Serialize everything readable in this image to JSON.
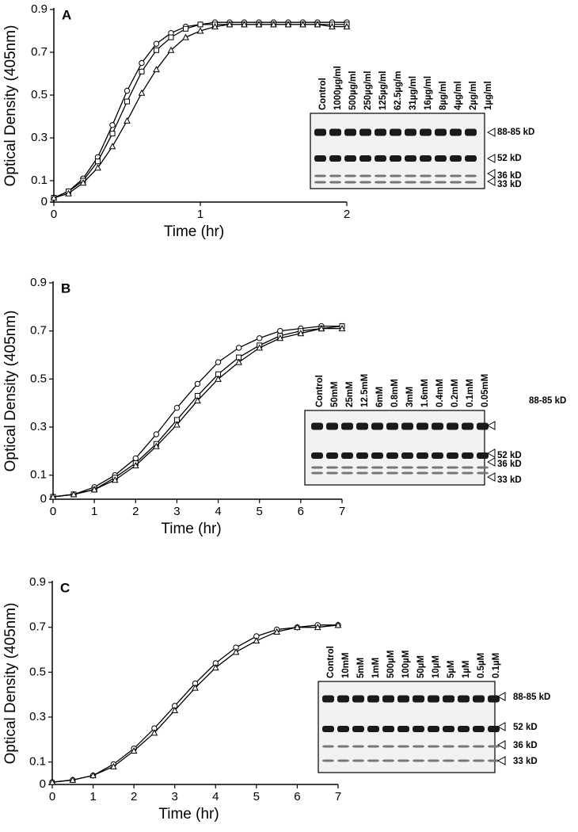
{
  "chart_data": [
    {
      "type": "line",
      "panel": "A",
      "xlabel": "Time (hr)",
      "ylabel": "Optical Density (405nm)",
      "xlim": [
        0,
        2
      ],
      "xticks": [
        0,
        1,
        2
      ],
      "ylim": [
        0,
        0.9
      ],
      "yticks": [
        0,
        0.1,
        0.3,
        0.5,
        0.7,
        0.9
      ],
      "x": [
        0,
        0.1,
        0.2,
        0.3,
        0.4,
        0.5,
        0.6,
        0.7,
        0.8,
        0.9,
        1.0,
        1.1,
        1.2,
        1.3,
        1.4,
        1.5,
        1.6,
        1.7,
        1.8,
        1.9,
        2.0
      ],
      "series": [
        {
          "color": "#000000",
          "marker": "circle",
          "values": [
            0.02,
            0.05,
            0.11,
            0.21,
            0.36,
            0.52,
            0.65,
            0.74,
            0.79,
            0.82,
            0.83,
            0.84,
            0.84,
            0.84,
            0.84,
            0.84,
            0.84,
            0.84,
            0.84,
            0.84,
            0.84
          ]
        },
        {
          "color": "#000000",
          "marker": "square",
          "values": [
            0.02,
            0.05,
            0.1,
            0.19,
            0.32,
            0.47,
            0.61,
            0.71,
            0.77,
            0.81,
            0.83,
            0.83,
            0.83,
            0.83,
            0.83,
            0.83,
            0.83,
            0.83,
            0.83,
            0.83,
            0.83
          ]
        },
        {
          "color": "#000000",
          "marker": "triangle",
          "values": [
            0.02,
            0.04,
            0.09,
            0.16,
            0.26,
            0.38,
            0.51,
            0.62,
            0.71,
            0.77,
            0.8,
            0.82,
            0.83,
            0.83,
            0.83,
            0.83,
            0.83,
            0.83,
            0.83,
            0.82,
            0.82
          ]
        }
      ],
      "gel_lanes": [
        "Control",
        "1000µg/ml",
        "500µg/ml",
        "250µg/ml",
        "125µg/ml",
        "62.5µg/m",
        "31µg/ml",
        "16µg/ml",
        "8µg/ml",
        "4µg/ml",
        "2µg/ml",
        "1µg/ml"
      ],
      "gel_bands": [
        "88-85 kD",
        "52 kD",
        "36 kD",
        "33 kD"
      ]
    },
    {
      "type": "line",
      "panel": "B",
      "xlabel": "Time (hr)",
      "ylabel": "Optical Density (405nm)",
      "xlim": [
        0,
        7
      ],
      "xticks": [
        0,
        1,
        2,
        3,
        4,
        5,
        6,
        7
      ],
      "ylim": [
        0,
        0.9
      ],
      "yticks": [
        0,
        0.1,
        0.3,
        0.5,
        0.7,
        0.9
      ],
      "x": [
        0,
        0.5,
        1,
        1.5,
        2,
        2.5,
        3,
        3.5,
        4,
        4.5,
        5,
        5.5,
        6,
        6.5,
        7
      ],
      "series": [
        {
          "color": "#000000",
          "marker": "circle",
          "values": [
            0.01,
            0.02,
            0.05,
            0.1,
            0.17,
            0.27,
            0.38,
            0.48,
            0.57,
            0.63,
            0.67,
            0.7,
            0.71,
            0.72,
            0.72
          ]
        },
        {
          "color": "#000000",
          "marker": "square",
          "values": [
            0.01,
            0.02,
            0.04,
            0.09,
            0.15,
            0.23,
            0.33,
            0.43,
            0.52,
            0.59,
            0.64,
            0.68,
            0.7,
            0.71,
            0.72
          ]
        },
        {
          "color": "#000000",
          "marker": "triangle",
          "values": [
            0.01,
            0.02,
            0.04,
            0.08,
            0.14,
            0.22,
            0.31,
            0.41,
            0.5,
            0.57,
            0.63,
            0.67,
            0.69,
            0.71,
            0.71
          ]
        }
      ],
      "gel_lanes": [
        "Control",
        "50mM",
        "25mM",
        "12.5mM",
        "6mM",
        "0.8mM",
        "3mM",
        "1.6mM",
        "0.4mM",
        "0.2mM",
        "0.1mM",
        "0.05mM"
      ],
      "gel_bands": [
        "88-85 kD",
        "52 kD",
        "36 kD",
        "33 kD"
      ]
    },
    {
      "type": "line",
      "panel": "C",
      "xlabel": "Time (hr)",
      "ylabel": "Optical Density (405nm)",
      "xlim": [
        0,
        7
      ],
      "xticks": [
        0,
        1,
        2,
        3,
        4,
        5,
        6,
        7
      ],
      "ylim": [
        0,
        0.9
      ],
      "yticks": [
        0,
        0.1,
        0.3,
        0.5,
        0.7,
        0.9
      ],
      "x": [
        0,
        0.5,
        1,
        1.5,
        2,
        2.5,
        3,
        3.5,
        4,
        4.5,
        5,
        5.5,
        6,
        6.5,
        7
      ],
      "series": [
        {
          "color": "#000000",
          "marker": "circle",
          "values": [
            0.01,
            0.02,
            0.04,
            0.09,
            0.16,
            0.25,
            0.35,
            0.45,
            0.54,
            0.61,
            0.66,
            0.69,
            0.7,
            0.71,
            0.71
          ]
        },
        {
          "color": "#000000",
          "marker": "triangle",
          "values": [
            0.01,
            0.02,
            0.04,
            0.08,
            0.15,
            0.23,
            0.33,
            0.43,
            0.52,
            0.59,
            0.64,
            0.68,
            0.7,
            0.7,
            0.71
          ]
        }
      ],
      "gel_lanes": [
        "Control",
        "10mM",
        "5mM",
        "1mM",
        "500µM",
        "100µM",
        "50µM",
        "10µM",
        "5µM",
        "1µM",
        "0.5µM",
        "0.1µM"
      ],
      "gel_bands": [
        "88-85 kD",
        "52 kD",
        "36 kD",
        "33 kD"
      ]
    }
  ]
}
